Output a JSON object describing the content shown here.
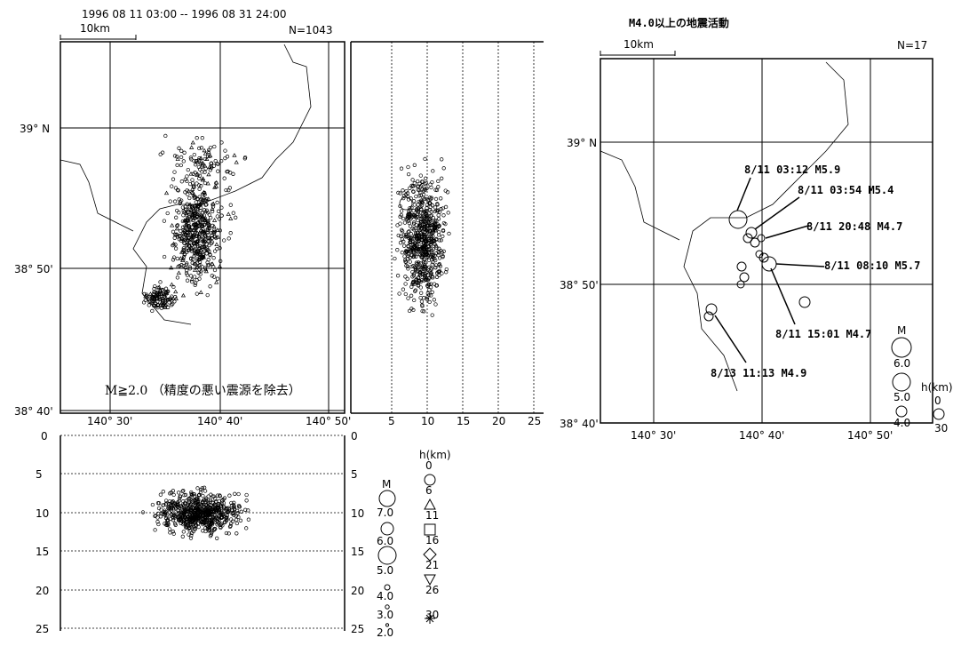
{
  "left_map": {
    "period": "1996 08 11 03:00 -- 1996 08 31 24:00",
    "scale": "10km",
    "count": "N=1043",
    "caption": "M≧2.0 （精度の悪い震源を除去）",
    "lat_labels": [
      "39° N",
      "38° 50'",
      "38° 40'"
    ],
    "lon_labels": [
      "140° 30'",
      "140° 40'",
      "140° 50'"
    ]
  },
  "ew_section": {
    "depth_labels": [
      "5",
      "10",
      "15",
      "20",
      "25"
    ]
  },
  "ns_section": {
    "depth_labels_left": [
      "0",
      "5",
      "10",
      "15",
      "20",
      "25"
    ],
    "depth_labels_right": [
      "0",
      "5",
      "10",
      "15",
      "20",
      "25"
    ]
  },
  "legend": {
    "magnitude_title": "M",
    "magnitudes": [
      "7.0",
      "6.0",
      "5.0",
      "4.0",
      "3.0",
      "2.0"
    ],
    "depth_title": "h(km)",
    "depths": [
      "0",
      "6",
      "11",
      "16",
      "21",
      "26",
      "30"
    ]
  },
  "right_map": {
    "title": "M4.0以上の地震活動",
    "scale": "10km",
    "count": "N=17",
    "lat_labels": [
      "39° N",
      "38° 50'",
      "38° 40'"
    ],
    "lon_labels": [
      "140° 30'",
      "140° 40'",
      "140° 50'"
    ],
    "events": [
      {
        "label": "8/11 03:12 M5.9"
      },
      {
        "label": "8/11 03:54 M5.4"
      },
      {
        "label": "8/11 20:48 M4.7"
      },
      {
        "label": "8/11 08:10 M5.7"
      },
      {
        "label": "8/11 15:01 M4.7"
      },
      {
        "label": "8/13 11:13 M4.9"
      }
    ],
    "legend": {
      "magnitude_title": "M",
      "magnitudes": [
        "6.0",
        "5.0",
        "4.0"
      ],
      "depth_title": "h(km)",
      "depths": [
        "0",
        "30"
      ]
    }
  }
}
